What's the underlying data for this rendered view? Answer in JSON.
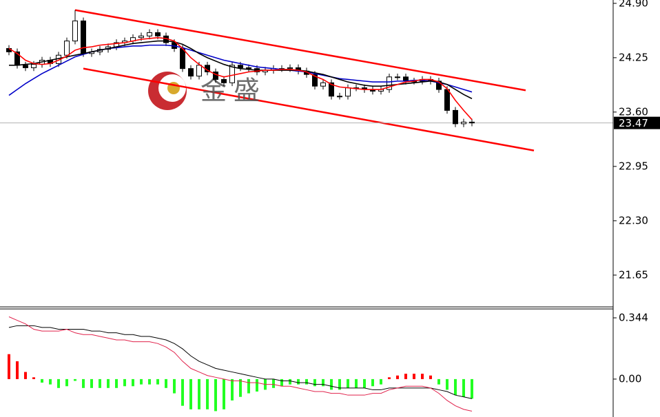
{
  "chart_data": [
    {
      "type": "candlestick",
      "ylim": [
        21.27,
        24.94
      ],
      "yticks": [
        {
          "value": 24.9,
          "label": "24.90"
        },
        24.25,
        {
          "value": 23.6,
          "label": "23.60"
        },
        22.95,
        {
          "value": 22.3,
          "label": "22.30"
        },
        21.65
      ],
      "candles": [
        [
          24.36,
          24.4,
          24.28,
          24.32
        ],
        [
          24.32,
          24.36,
          24.12,
          24.16
        ],
        [
          24.16,
          24.2,
          24.09,
          24.13
        ],
        [
          24.13,
          24.21,
          24.09,
          24.17
        ],
        [
          24.17,
          24.26,
          24.13,
          24.22
        ],
        [
          24.22,
          24.26,
          24.14,
          24.18
        ],
        [
          24.18,
          24.32,
          24.14,
          24.28
        ],
        [
          24.28,
          24.49,
          24.24,
          24.45
        ],
        [
          24.45,
          24.82,
          24.41,
          24.69
        ],
        [
          24.69,
          24.73,
          24.26,
          24.3
        ],
        [
          24.3,
          24.36,
          24.26,
          24.32
        ],
        [
          24.32,
          24.39,
          24.28,
          24.35
        ],
        [
          24.35,
          24.42,
          24.31,
          24.38
        ],
        [
          24.38,
          24.47,
          24.34,
          24.43
        ],
        [
          24.43,
          24.49,
          24.39,
          24.45
        ],
        [
          24.45,
          24.53,
          24.41,
          24.49
        ],
        [
          24.49,
          24.55,
          24.45,
          24.51
        ],
        [
          24.51,
          24.59,
          24.47,
          24.55
        ],
        [
          24.55,
          24.59,
          24.47,
          24.51
        ],
        [
          24.51,
          24.55,
          24.39,
          24.43
        ],
        [
          24.43,
          24.47,
          24.32,
          24.36
        ],
        [
          24.36,
          24.4,
          24.08,
          24.12
        ],
        [
          24.12,
          24.16,
          23.99,
          24.03
        ],
        [
          24.03,
          24.2,
          23.99,
          24.16
        ],
        [
          24.16,
          24.2,
          24.04,
          24.08
        ],
        [
          24.08,
          24.12,
          23.95,
          23.99
        ],
        [
          23.99,
          24.03,
          23.91,
          23.95
        ],
        [
          23.95,
          24.2,
          23.91,
          24.16
        ],
        [
          24.16,
          24.2,
          24.09,
          24.13
        ],
        [
          24.13,
          24.17,
          24.08,
          24.12
        ],
        [
          24.12,
          24.16,
          24.04,
          24.08
        ],
        [
          24.08,
          24.14,
          24.04,
          24.1
        ],
        [
          24.1,
          24.16,
          24.06,
          24.12
        ],
        [
          24.12,
          24.16,
          24.08,
          24.12
        ],
        [
          24.12,
          24.17,
          24.08,
          24.13
        ],
        [
          24.13,
          24.17,
          24.05,
          24.09
        ],
        [
          24.09,
          24.13,
          24.01,
          24.05
        ],
        [
          24.05,
          24.09,
          23.87,
          23.91
        ],
        [
          23.91,
          23.99,
          23.87,
          23.95
        ],
        [
          23.95,
          23.99,
          23.75,
          23.79
        ],
        [
          23.79,
          23.83,
          23.75,
          23.79
        ],
        [
          23.79,
          23.93,
          23.75,
          23.89
        ],
        [
          23.89,
          23.93,
          23.85,
          23.89
        ],
        [
          23.89,
          23.93,
          23.83,
          23.87
        ],
        [
          23.87,
          23.91,
          23.81,
          23.85
        ],
        [
          23.85,
          23.91,
          23.81,
          23.87
        ],
        [
          23.87,
          24.06,
          23.83,
          24.02
        ],
        [
          24.02,
          24.06,
          23.98,
          24.02
        ],
        [
          24.02,
          24.06,
          23.93,
          23.97
        ],
        [
          23.97,
          24.01,
          23.93,
          23.97
        ],
        [
          23.97,
          24.03,
          23.93,
          23.99
        ],
        [
          23.99,
          24.03,
          23.93,
          23.97
        ],
        [
          23.97,
          24.01,
          23.83,
          23.87
        ],
        [
          23.87,
          23.91,
          23.58,
          23.62
        ],
        [
          23.62,
          23.66,
          23.42,
          23.46
        ],
        [
          23.46,
          23.52,
          23.42,
          23.48
        ],
        [
          23.48,
          23.52,
          23.43,
          23.47
        ]
      ],
      "series": [
        {
          "color": "#0000c8",
          "values": [
            23.8,
            23.87,
            23.94,
            24.0,
            24.06,
            24.11,
            24.16,
            24.21,
            24.26,
            24.29,
            24.32,
            24.34,
            24.36,
            24.37,
            24.38,
            24.39,
            24.39,
            24.4,
            24.4,
            24.4,
            24.39,
            24.37,
            24.34,
            24.31,
            24.28,
            24.25,
            24.22,
            24.2,
            24.18,
            24.16,
            24.14,
            24.13,
            24.12,
            24.11,
            24.1,
            24.09,
            24.08,
            24.06,
            24.04,
            24.02,
            24.0,
            23.99,
            23.98,
            23.97,
            23.96,
            23.96,
            23.96,
            23.97,
            23.97,
            23.98,
            23.98,
            23.97,
            23.95,
            23.93,
            23.9,
            23.87,
            23.84
          ]
        },
        {
          "color": "#000000",
          "values": [
            24.16,
            24.16,
            24.17,
            24.18,
            24.2,
            24.22,
            24.24,
            24.26,
            24.28,
            24.3,
            24.32,
            24.34,
            24.36,
            24.38,
            24.4,
            24.42,
            24.43,
            24.44,
            24.45,
            24.45,
            24.44,
            24.41,
            24.36,
            24.3,
            24.25,
            24.21,
            24.17,
            24.14,
            24.12,
            24.11,
            24.1,
            24.1,
            24.1,
            24.1,
            24.1,
            24.1,
            24.09,
            24.07,
            24.05,
            24.02,
            23.99,
            23.96,
            23.94,
            23.92,
            23.91,
            23.91,
            23.92,
            23.93,
            23.94,
            23.95,
            23.96,
            23.97,
            23.96,
            23.93,
            23.87,
            23.81,
            23.76
          ]
        },
        {
          "color": "#ff0000",
          "values": [
            24.36,
            24.3,
            24.22,
            24.18,
            24.17,
            24.18,
            24.22,
            24.27,
            24.34,
            24.37,
            24.38,
            24.4,
            24.41,
            24.42,
            24.43,
            24.45,
            24.47,
            24.48,
            24.49,
            24.48,
            24.45,
            24.36,
            24.25,
            24.17,
            24.1,
            24.05,
            24.02,
            24.04,
            24.06,
            24.08,
            24.09,
            24.1,
            24.1,
            24.11,
            24.11,
            24.1,
            24.08,
            24.03,
            23.99,
            23.93,
            23.9,
            23.89,
            23.88,
            23.87,
            23.87,
            23.87,
            23.9,
            23.93,
            23.96,
            23.97,
            23.99,
            23.99,
            23.96,
            23.88,
            23.74,
            23.62,
            23.51
          ]
        }
      ],
      "channel": [
        {
          "color": "#ff0000",
          "x": [
            8,
            62.5
          ],
          "values": [
            24.82,
            23.86
          ]
        },
        {
          "color": "#ff0000",
          "x": [
            9,
            63.5
          ],
          "values": [
            24.12,
            23.14
          ]
        }
      ],
      "last_price": 23.47,
      "watermark": [
        "金",
        "盛"
      ]
    },
    {
      "type": "macd",
      "ylim": [
        -0.213,
        0.394
      ],
      "yticks": [
        0.344,
        {
          "value": 0,
          "label": "0.00"
        }
      ],
      "up_color": "#ff0000",
      "down_color": "#22ff22",
      "values": [
        0.14,
        0.1,
        0.04,
        0.01,
        -0.02,
        -0.03,
        -0.05,
        -0.04,
        -0.01,
        -0.05,
        -0.05,
        -0.05,
        -0.05,
        -0.05,
        -0.04,
        -0.04,
        -0.03,
        -0.03,
        -0.03,
        -0.05,
        -0.08,
        -0.15,
        -0.17,
        -0.17,
        -0.17,
        -0.18,
        -0.17,
        -0.12,
        -0.1,
        -0.08,
        -0.07,
        -0.06,
        -0.05,
        -0.04,
        -0.03,
        -0.03,
        -0.03,
        -0.04,
        -0.04,
        -0.06,
        -0.06,
        -0.05,
        -0.05,
        -0.05,
        -0.04,
        -0.03,
        0.01,
        0.02,
        0.03,
        0.03,
        0.03,
        0.02,
        -0.03,
        -0.06,
        -0.09,
        -0.1,
        -0.11
      ],
      "series": [
        {
          "color": "#000000",
          "values": [
            0.29,
            0.3,
            0.3,
            0.3,
            0.29,
            0.29,
            0.28,
            0.28,
            0.28,
            0.28,
            0.27,
            0.27,
            0.26,
            0.26,
            0.25,
            0.25,
            0.24,
            0.24,
            0.23,
            0.22,
            0.2,
            0.17,
            0.13,
            0.1,
            0.08,
            0.06,
            0.05,
            0.04,
            0.03,
            0.02,
            0.01,
            0.0,
            0.0,
            -0.01,
            -0.01,
            -0.02,
            -0.02,
            -0.03,
            -0.03,
            -0.04,
            -0.05,
            -0.05,
            -0.05,
            -0.05,
            -0.06,
            -0.06,
            -0.05,
            -0.05,
            -0.05,
            -0.05,
            -0.05,
            -0.05,
            -0.06,
            -0.07,
            -0.09,
            -0.1,
            -0.11
          ]
        },
        {
          "color": "#e0204a",
          "values": [
            0.35,
            0.33,
            0.31,
            0.28,
            0.27,
            0.27,
            0.27,
            0.28,
            0.26,
            0.25,
            0.25,
            0.24,
            0.23,
            0.22,
            0.22,
            0.21,
            0.21,
            0.21,
            0.2,
            0.18,
            0.15,
            0.1,
            0.06,
            0.04,
            0.02,
            0.01,
            0.0,
            -0.01,
            -0.01,
            -0.02,
            -0.02,
            -0.03,
            -0.03,
            -0.04,
            -0.04,
            -0.05,
            -0.06,
            -0.07,
            -0.07,
            -0.08,
            -0.08,
            -0.09,
            -0.09,
            -0.09,
            -0.08,
            -0.08,
            -0.06,
            -0.05,
            -0.04,
            -0.04,
            -0.04,
            -0.05,
            -0.08,
            -0.12,
            -0.15,
            -0.17,
            -0.18
          ]
        }
      ]
    }
  ]
}
